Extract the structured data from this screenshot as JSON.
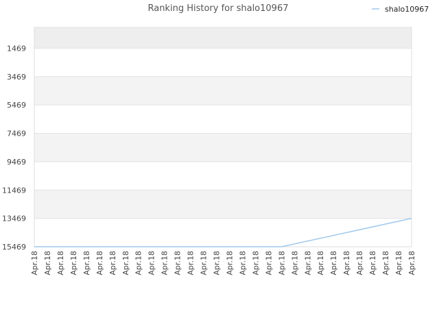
{
  "chart_data": {
    "type": "line",
    "title": "Ranking History for shalo10967",
    "xlabel": "",
    "ylabel": "",
    "y_reversed": true,
    "ylim": [
      15469,
      0
    ],
    "y_ticks": [
      1469,
      3469,
      5469,
      7469,
      9469,
      11469,
      13469,
      15469
    ],
    "x_tick_labels": [
      "Apr.18",
      "Apr.18",
      "Apr.18",
      "Apr.18",
      "Apr.18",
      "Apr.18",
      "Apr.18",
      "Apr.18",
      "Apr.18",
      "Apr.18",
      "Apr.18",
      "Apr.18",
      "Apr.18",
      "Apr.18",
      "Apr.18",
      "Apr.18",
      "Apr.18",
      "Apr.18",
      "Apr.18",
      "Apr.18",
      "Apr.18",
      "Apr.18",
      "Apr.18",
      "Apr.18",
      "Apr.18",
      "Apr.18",
      "Apr.18",
      "Apr.18",
      "Apr.18",
      "Apr.18"
    ],
    "grid": true,
    "alternating_bands": true,
    "legend_position": "top-right",
    "series": [
      {
        "name": "shalo10967",
        "color": "#9fc9ec",
        "x": [
          0,
          19,
          29
        ],
        "values": [
          15469,
          15469,
          13469
        ]
      }
    ]
  }
}
